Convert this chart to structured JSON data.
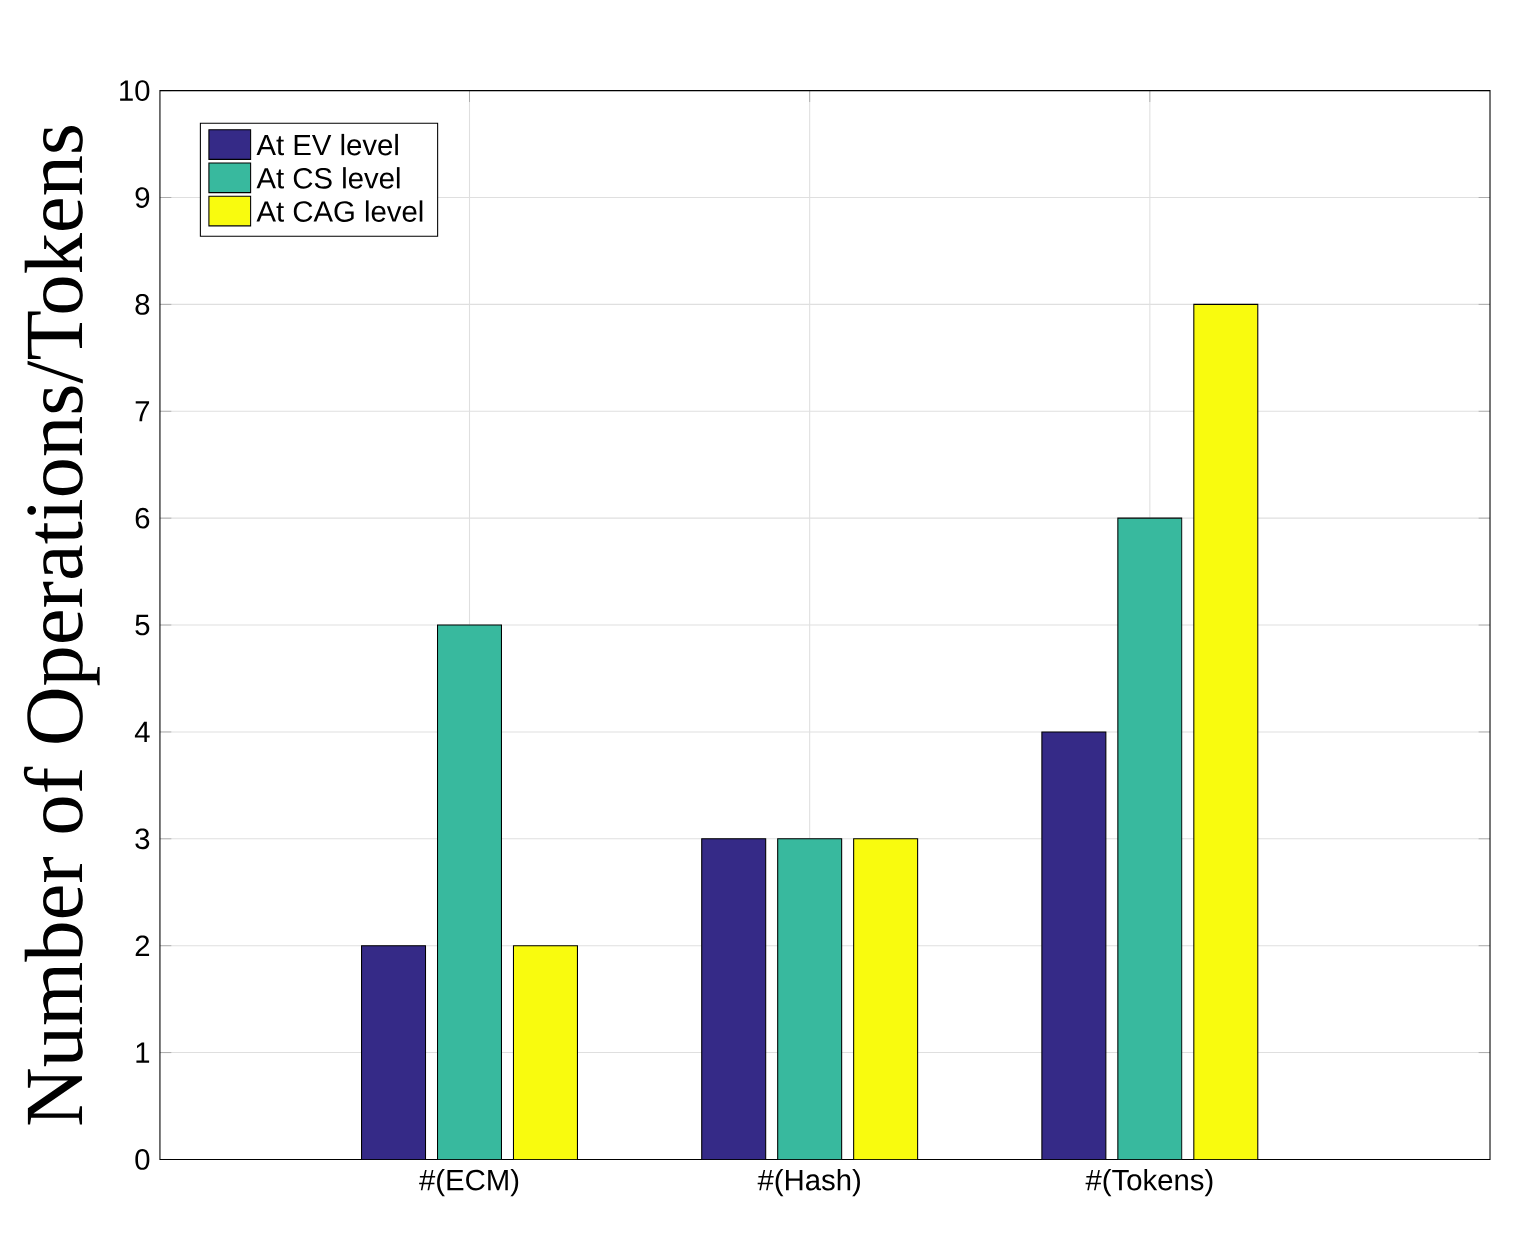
{
  "chart_data": {
    "type": "bar",
    "ylabel": "Number of Operations/Tokens",
    "categories": [
      "#(ECM)",
      "#(Hash)",
      "#(Tokens)"
    ],
    "series": [
      {
        "name": "At EV level",
        "color": "#352a87",
        "values": [
          2,
          3,
          4
        ]
      },
      {
        "name": "At CS level",
        "color": "#38b99e",
        "values": [
          5,
          3,
          6
        ]
      },
      {
        "name": "At CAG level",
        "color": "#f9fb0e",
        "values": [
          2,
          3,
          8
        ]
      }
    ],
    "ylim": [
      0,
      10
    ],
    "yticks": [
      0,
      1,
      2,
      3,
      4,
      5,
      6,
      7,
      8,
      9,
      10
    ],
    "grid": true,
    "legend": "top left"
  }
}
